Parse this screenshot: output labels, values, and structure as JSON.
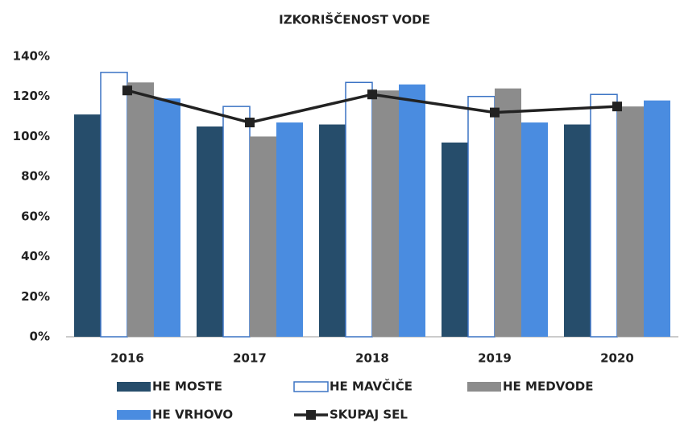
{
  "chart_data": {
    "type": "bar",
    "title": "IZKORIŠČENOST VODE",
    "categories": [
      "2016",
      "2017",
      "2018",
      "2019",
      "2020"
    ],
    "series": [
      {
        "name": "HE MOSTE",
        "color": "#264d6b",
        "values": [
          111,
          105,
          106,
          97,
          106
        ]
      },
      {
        "name": "HE MAVČIČE",
        "color": "#ffffff",
        "stroke": "#3b73c4",
        "values": [
          132,
          115,
          127,
          120,
          121
        ]
      },
      {
        "name": "HE MEDVODE",
        "color": "#8c8c8c",
        "values": [
          127,
          100,
          123,
          124,
          115
        ]
      },
      {
        "name": "HE VRHOVO",
        "color": "#4a8ce0",
        "values": [
          119,
          107,
          126,
          107,
          118
        ]
      },
      {
        "name": "SKUPAJ SEL",
        "type": "line",
        "color": "#222222",
        "values": [
          123,
          107,
          121,
          112,
          115
        ]
      }
    ],
    "ylim": [
      0,
      140
    ],
    "yticks": [
      {
        "value": 0,
        "label": "0%"
      },
      {
        "value": 20,
        "label": "20%"
      },
      {
        "value": 40,
        "label": "40%"
      },
      {
        "value": 60,
        "label": "60%"
      },
      {
        "value": 80,
        "label": "80%"
      },
      {
        "value": 100,
        "label": "100%"
      },
      {
        "value": 120,
        "label": "120%"
      },
      {
        "value": 140,
        "label": "140%"
      }
    ],
    "grid": false,
    "legend": "bottom"
  }
}
